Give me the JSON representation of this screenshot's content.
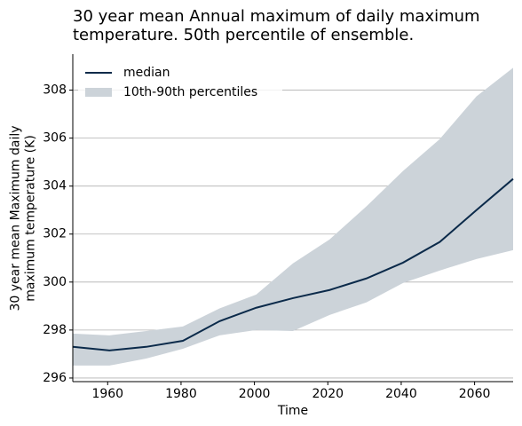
{
  "chart_data": {
    "type": "line",
    "title": "30 year mean Annual maximum of daily maximum temperature. 50th percentile of ensemble.",
    "xlabel": "Time",
    "ylabel": "30 year mean Maximum daily maximum temperature (K)",
    "x": [
      1950.5,
      1960.5,
      1970.5,
      1980.5,
      1990.5,
      2000.5,
      2010.5,
      2020.5,
      2030.5,
      2040.5,
      2050.5,
      2060.5,
      2070.5
    ],
    "series": [
      {
        "name": "median",
        "color": "#0b2a4a",
        "values": [
          297.3,
          297.15,
          297.3,
          297.55,
          298.37,
          298.93,
          299.33,
          299.67,
          300.15,
          300.81,
          301.67,
          303.0,
          304.3
        ]
      },
      {
        "name": "10th-90th percentiles",
        "color": "#ccd3d9",
        "lower": [
          296.52,
          296.52,
          296.81,
          297.22,
          297.78,
          298.0,
          297.96,
          298.63,
          299.15,
          299.96,
          300.48,
          300.96,
          301.33
        ],
        "upper": [
          297.85,
          297.78,
          297.96,
          298.15,
          298.9,
          299.48,
          300.78,
          301.78,
          303.15,
          304.63,
          305.96,
          307.74,
          308.93
        ]
      }
    ],
    "xlim": [
      1950.5,
      2070.5
    ],
    "xticks": [
      1960,
      1980,
      2000,
      2020,
      2040,
      2060
    ],
    "ylim": [
      295.85,
      309.5
    ],
    "yticks": [
      296,
      298,
      300,
      302,
      304,
      306,
      308
    ],
    "grid": true,
    "legend": "upper left"
  }
}
